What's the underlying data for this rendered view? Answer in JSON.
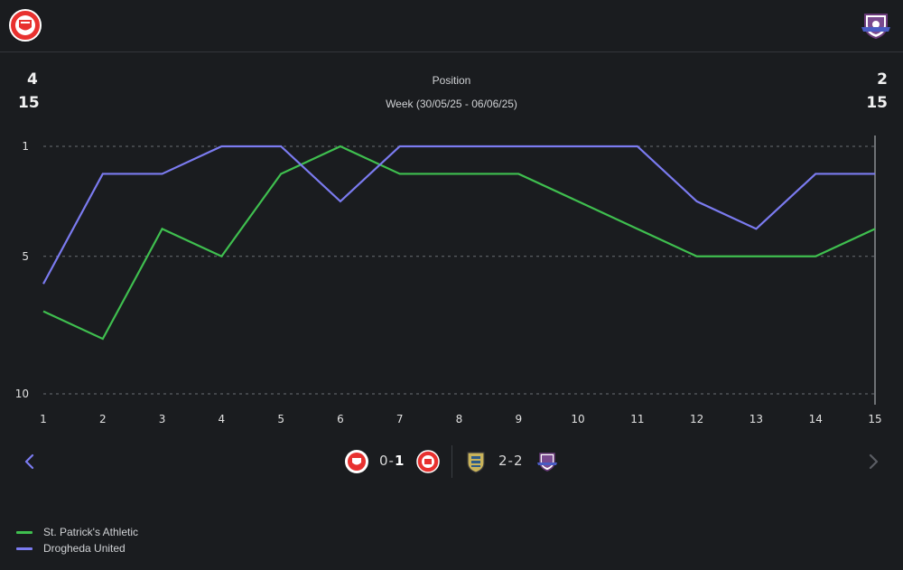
{
  "header": {
    "home_crest": "st-patricks-athletic-crest",
    "away_crest": "drogheda-united-crest"
  },
  "summary": {
    "home_position": "4",
    "home_total": "15",
    "away_position": "2",
    "away_total": "15",
    "title": "Position",
    "subtitle": "Week (30/05/25 - 06/06/25)"
  },
  "chart_data": {
    "type": "line",
    "title": "Position",
    "xlabel": "",
    "ylabel": "",
    "x": [
      1,
      2,
      3,
      4,
      5,
      6,
      7,
      8,
      9,
      10,
      11,
      12,
      13,
      14,
      15
    ],
    "ylim": [
      10,
      1
    ],
    "y_inverted": true,
    "y_ticks": [
      1,
      5,
      10
    ],
    "grid": "dashed-horizontal",
    "series": [
      {
        "name": "St. Patrick's Athletic",
        "color": "#3fbf4f",
        "values": [
          7,
          8,
          4,
          5,
          2,
          1,
          2,
          2,
          2,
          3,
          4,
          5,
          5,
          5,
          4
        ]
      },
      {
        "name": "Drogheda United",
        "color": "#7b7bf0",
        "values": [
          6,
          2,
          2,
          1,
          1,
          3,
          1,
          1,
          1,
          1,
          1,
          3,
          4,
          2,
          2
        ]
      }
    ],
    "highlight_x": 15
  },
  "matches": [
    {
      "home_crest": "st-patricks-athletic-crest",
      "score_home": "0",
      "score_away": "1",
      "away_crest": "st-patricks-athletic-crest"
    },
    {
      "home_crest": "waterford-crest",
      "score_home": "2",
      "score_away": "2",
      "away_crest": "drogheda-united-crest"
    }
  ],
  "nav": {
    "prev_icon": "chevron-left-icon",
    "next_icon": "chevron-right-icon"
  },
  "legend": [
    {
      "label": "St. Patrick's Athletic",
      "color": "#3fbf4f"
    },
    {
      "label": "Drogheda United",
      "color": "#7b7bf0"
    }
  ]
}
